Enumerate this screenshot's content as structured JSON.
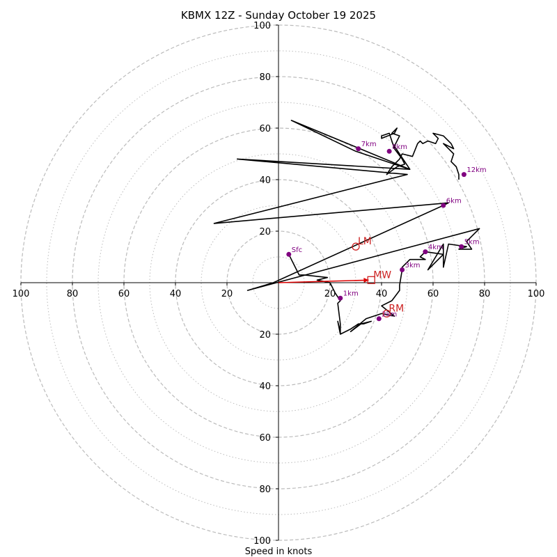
{
  "chart_data": {
    "type": "hodograph",
    "title": "KBMX 12Z - Sunday October 19 2025",
    "xlabel": "Speed in knots",
    "range": 100,
    "x_ticks": [
      {
        "value": -100,
        "label": "100"
      },
      {
        "value": -80,
        "label": "80"
      },
      {
        "value": -60,
        "label": "60"
      },
      {
        "value": -40,
        "label": "40"
      },
      {
        "value": -20,
        "label": "20"
      },
      {
        "value": 20,
        "label": "20"
      },
      {
        "value": 40,
        "label": "40"
      },
      {
        "value": 60,
        "label": "60"
      },
      {
        "value": 80,
        "label": "80"
      },
      {
        "value": 100,
        "label": "100"
      }
    ],
    "y_ticks": [
      {
        "value": 100,
        "label": "100"
      },
      {
        "value": 80,
        "label": "80"
      },
      {
        "value": 60,
        "label": "60"
      },
      {
        "value": 40,
        "label": "40"
      },
      {
        "value": 20,
        "label": "20"
      },
      {
        "value": -20,
        "label": "20"
      },
      {
        "value": -40,
        "label": "40"
      },
      {
        "value": -60,
        "label": "60"
      },
      {
        "value": -80,
        "label": "80"
      },
      {
        "value": -100,
        "label": "100"
      }
    ],
    "rings_major": [
      20,
      40,
      60,
      80,
      100
    ],
    "rings_minor": [
      10,
      30,
      50,
      70,
      90
    ],
    "trace": [
      [
        4,
        11
      ],
      [
        8,
        3
      ],
      [
        10,
        3
      ],
      [
        19,
        2
      ],
      [
        15,
        1
      ],
      [
        20,
        0
      ],
      [
        22,
        -4
      ],
      [
        24,
        -7
      ],
      [
        23,
        -8
      ],
      [
        24,
        -16
      ],
      [
        24,
        -20
      ],
      [
        24,
        -19
      ],
      [
        23,
        -15
      ],
      [
        24,
        -20
      ],
      [
        28,
        -18
      ],
      [
        31,
        -16
      ],
      [
        33,
        -16
      ],
      [
        36,
        -15
      ],
      [
        32,
        -16
      ],
      [
        28,
        -19
      ],
      [
        34,
        -14
      ],
      [
        40,
        -12
      ],
      [
        45,
        -13
      ],
      [
        40,
        -9
      ],
      [
        44,
        -7
      ],
      [
        47,
        -3
      ],
      [
        47,
        -1
      ],
      [
        48,
        5
      ],
      [
        48,
        6
      ],
      [
        51,
        9
      ],
      [
        57,
        9
      ],
      [
        55,
        10
      ],
      [
        57,
        12
      ],
      [
        64,
        11
      ],
      [
        58,
        5
      ],
      [
        64,
        15
      ],
      [
        64,
        6
      ],
      [
        66,
        15
      ],
      [
        73,
        14
      ],
      [
        70,
        13
      ],
      [
        75,
        13
      ],
      [
        73,
        16
      ],
      [
        76,
        19
      ],
      [
        78,
        21
      ],
      [
        -12,
        -3
      ],
      [
        -2,
        0
      ],
      [
        64,
        30
      ],
      [
        66,
        31
      ],
      [
        -25,
        23
      ],
      [
        50,
        42
      ],
      [
        -16,
        48
      ],
      [
        51,
        44
      ],
      [
        30,
        51
      ],
      [
        5,
        63
      ],
      [
        51,
        44
      ],
      [
        45,
        53
      ],
      [
        47,
        57
      ],
      [
        44,
        58
      ],
      [
        46,
        60
      ],
      [
        45,
        58
      ],
      [
        40,
        56
      ],
      [
        40,
        57
      ],
      [
        43,
        58
      ],
      [
        44,
        55
      ],
      [
        45,
        52
      ],
      [
        48,
        48
      ],
      [
        49,
        46
      ],
      [
        46,
        45
      ],
      [
        42,
        42
      ],
      [
        44,
        45
      ],
      [
        47,
        48
      ],
      [
        48,
        50
      ],
      [
        52,
        49
      ],
      [
        54,
        54
      ],
      [
        55,
        55
      ],
      [
        56,
        54
      ],
      [
        58,
        55
      ],
      [
        61,
        54
      ],
      [
        62,
        56
      ],
      [
        60,
        58
      ],
      [
        64,
        57
      ],
      [
        67,
        54
      ],
      [
        68,
        52
      ],
      [
        64,
        54
      ],
      [
        66,
        52
      ],
      [
        68,
        50
      ],
      [
        67,
        47
      ],
      [
        69,
        45
      ],
      [
        70,
        42
      ],
      [
        70,
        40
      ]
    ],
    "height_markers": [
      {
        "label": "Sfc",
        "u": 4,
        "v": 11
      },
      {
        "label": "1km",
        "u": 24,
        "v": -6
      },
      {
        "label": "2km",
        "u": 39,
        "v": -14
      },
      {
        "label": "3km",
        "u": 48,
        "v": 5
      },
      {
        "label": "4km",
        "u": 57,
        "v": 12
      },
      {
        "label": "5km",
        "u": 71,
        "v": 14
      },
      {
        "label": "6km",
        "u": 64,
        "v": 30
      },
      {
        "label": "7km",
        "u": 31,
        "v": 52
      },
      {
        "label": "8km",
        "u": 43,
        "v": 51
      },
      {
        "label": "12km",
        "u": 72,
        "v": 42
      }
    ],
    "motion_markers": [
      {
        "label": "LM",
        "u": 30,
        "v": 14,
        "shape": "circle"
      },
      {
        "label": "RM",
        "u": 42,
        "v": -12,
        "shape": "circle"
      },
      {
        "label": "MW",
        "u": 36,
        "v": 1,
        "shape": "square"
      }
    ],
    "mean_wind_vector": {
      "u": 35,
      "v": 1
    },
    "colors": {
      "trace": "#000000",
      "height_marker": "#800080",
      "motion": "#cc2222",
      "ring": "#bbbbbb",
      "axis": "#000000"
    }
  }
}
